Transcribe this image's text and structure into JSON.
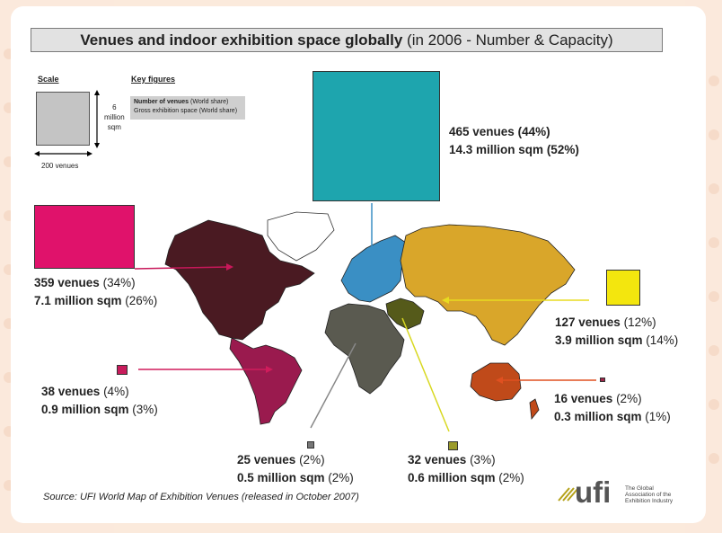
{
  "title": {
    "bold": "Venues and indoor exhibition space globally",
    "rest": " (in  2006 - Number & Capacity)"
  },
  "scale": {
    "label": "Scale",
    "vertical": [
      "6",
      "million",
      "sqm"
    ],
    "horizontal": "200 venues"
  },
  "key": {
    "label": "Key figures",
    "line1_bold": "Number of venues",
    "line1_rest": " (World share)",
    "line2": "Gross exhibition space (World share)"
  },
  "regions": {
    "europe": {
      "venues": "465 venues",
      "venues_share": "(44%)",
      "space": "14.3 million sqm",
      "space_share": "(52%)",
      "color": "#1ea5ae"
    },
    "north_america": {
      "venues": "359 venues",
      "venues_share": "(34%)",
      "space": "7.1 million sqm",
      "space_share": "(26%)",
      "color": "#e0126b"
    },
    "asia": {
      "venues": "127 venues",
      "venues_share": "(12%)",
      "space": "3.9 million sqm",
      "space_share": "(14%)",
      "color": "#f3e60e"
    },
    "latin_america": {
      "venues": "38 venues",
      "venues_share": "(4%)",
      "space": "0.9 million sqm",
      "space_share": "(3%)",
      "color": "#c81c5c"
    },
    "oceania": {
      "venues": "16 venues",
      "venues_share": "(2%)",
      "space": "0.3 million sqm",
      "space_share": "(1%)",
      "color": "#a0264a"
    },
    "africa": {
      "venues": "25 venues",
      "venues_share": "(2%)",
      "space": "0.5 million sqm",
      "space_share": "(2%)",
      "color": "#777777"
    },
    "middle_east": {
      "venues": "32 venues",
      "venues_share": "(3%)",
      "space": "0.6 million sqm",
      "space_share": "(2%)",
      "color": "#9a9a2a"
    }
  },
  "source": {
    "prefix": "Source:  ",
    "text": "UFI World Map of Exhibition Venues",
    "suffix": " (released in October 2007)"
  },
  "logo": {
    "word": "ufi",
    "tagline": "The Global Association of the Exhibition Industry"
  }
}
